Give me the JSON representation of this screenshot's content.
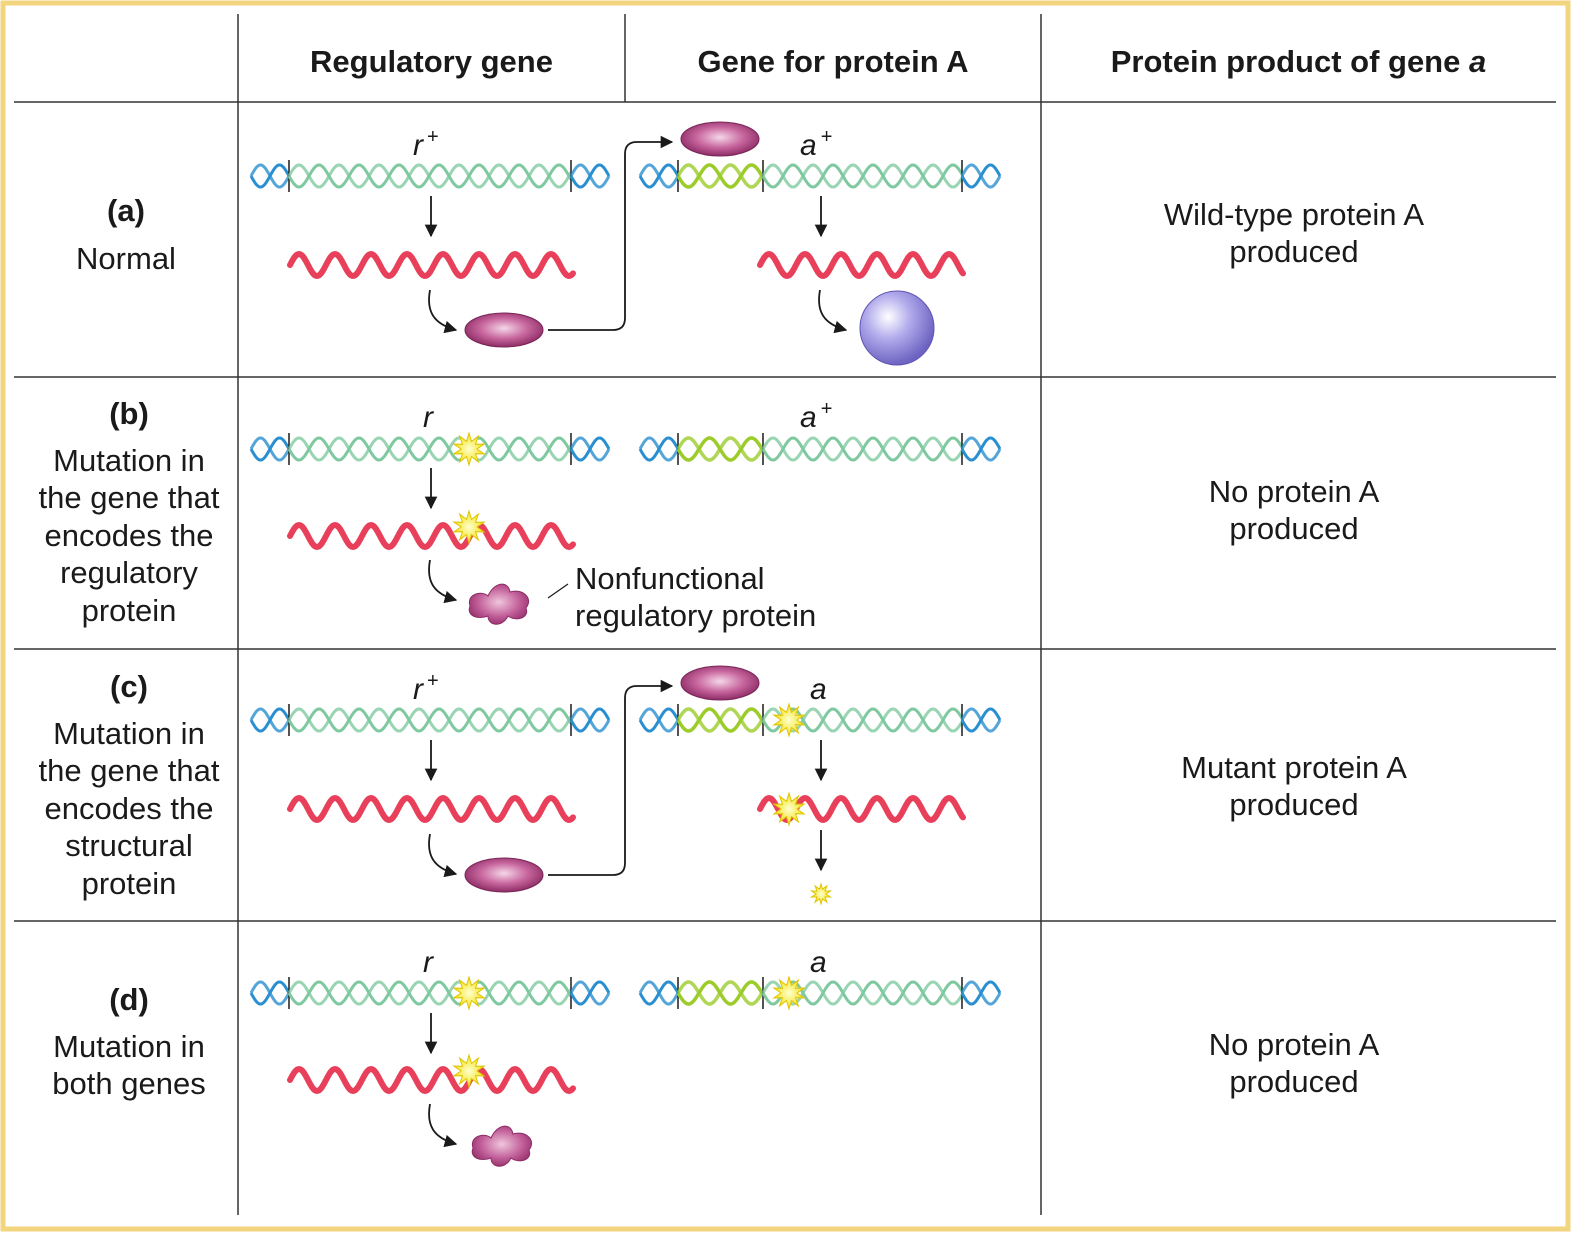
{
  "headers": {
    "col1": "Regulatory gene",
    "col2": "Gene for protein A",
    "col3_prefix": "Protein product of gene ",
    "col3_gene": "a"
  },
  "rows": [
    {
      "tag": "(a)",
      "desc_lines": [
        "Normal"
      ],
      "reg_gene": "r",
      "reg_sup": "+",
      "a_gene": "a",
      "a_sup": "+",
      "result_lines": [
        "Wild-type protein A",
        "produced"
      ]
    },
    {
      "tag": "(b)",
      "desc_lines": [
        "Mutation in",
        "the gene that",
        "encodes the",
        "regulatory",
        "protein"
      ],
      "reg_gene": "r",
      "reg_sup": "",
      "a_gene": "a",
      "a_sup": "+",
      "result_lines": [
        "No protein A",
        "produced"
      ],
      "note_lines": [
        "Nonfunctional",
        "regulatory protein"
      ]
    },
    {
      "tag": "(c)",
      "desc_lines": [
        "Mutation in",
        "the gene that",
        "encodes the",
        "structural",
        "protein"
      ],
      "reg_gene": "r",
      "reg_sup": "+",
      "a_gene": "a",
      "a_sup": "",
      "result_lines": [
        "Mutant protein A",
        "produced"
      ]
    },
    {
      "tag": "(d)",
      "desc_lines": [
        "Mutation in",
        "both genes"
      ],
      "reg_gene": "r",
      "reg_sup": "",
      "a_gene": "a",
      "a_sup": "",
      "result_lines": [
        "No protein A",
        "produced"
      ]
    }
  ],
  "colors": {
    "frame": "#f2d57e",
    "grid": "#333333",
    "dna_gene": "#7fc9a0",
    "dna_end": "#2a8fd0",
    "dna_promoter": "#9ccc2a",
    "mrna": "#e8405a",
    "regulatory_protein": "#b84a87",
    "protein_a": "#8f86d6",
    "mutation_star": "#f5e81c"
  }
}
